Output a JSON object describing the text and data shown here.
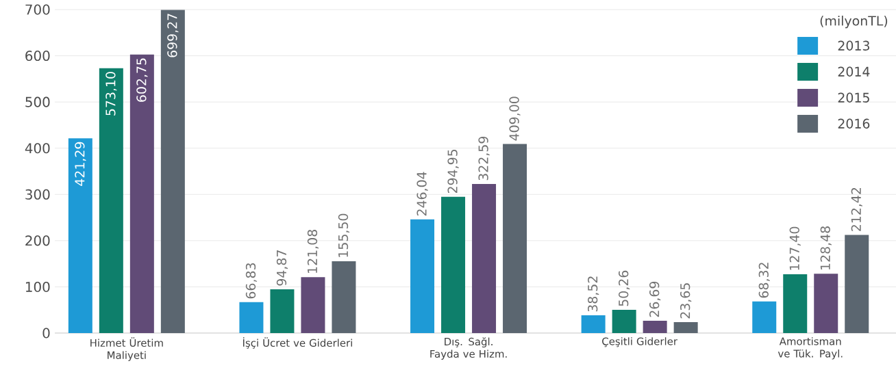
{
  "chart_data": {
    "type": "bar",
    "legend_title": "(milyonTL)",
    "categories": [
      "Hizmet Üretim Maliyeti",
      "İşçi Ücret ve Giderleri",
      "Dış. Sağl. Fayda ve Hizm.",
      "Çeşitli Giderler",
      "Amortisman ve Tük. Payl."
    ],
    "series": [
      {
        "name": "2013",
        "color": "#1e9ad6",
        "values": [
          421.29,
          66.83,
          246.04,
          38.52,
          68.32
        ],
        "value_labels": [
          "421,29",
          "66,83",
          "246,04",
          "38,52",
          "68,32"
        ]
      },
      {
        "name": "2014",
        "color": "#0e7f6b",
        "values": [
          573.1,
          94.87,
          294.95,
          50.26,
          127.4
        ],
        "value_labels": [
          "573,10",
          "94,87",
          "294,95",
          "50,26",
          "127,40"
        ]
      },
      {
        "name": "2015",
        "color": "#614b77",
        "values": [
          602.75,
          121.08,
          322.59,
          26.69,
          128.48
        ],
        "value_labels": [
          "602,75",
          "121,08",
          "322,59",
          "26,69",
          "128,48"
        ]
      },
      {
        "name": "2016",
        "color": "#5b6670",
        "values": [
          699.27,
          155.5,
          409.0,
          23.65,
          212.42
        ],
        "value_labels": [
          "699,27",
          "155,50",
          "409,00",
          "23,65",
          "212,42"
        ]
      }
    ],
    "ylim": [
      0,
      700
    ],
    "yticks": [
      0,
      100,
      200,
      300,
      400,
      500,
      600,
      700
    ],
    "grid": "y",
    "legend": "top right"
  }
}
